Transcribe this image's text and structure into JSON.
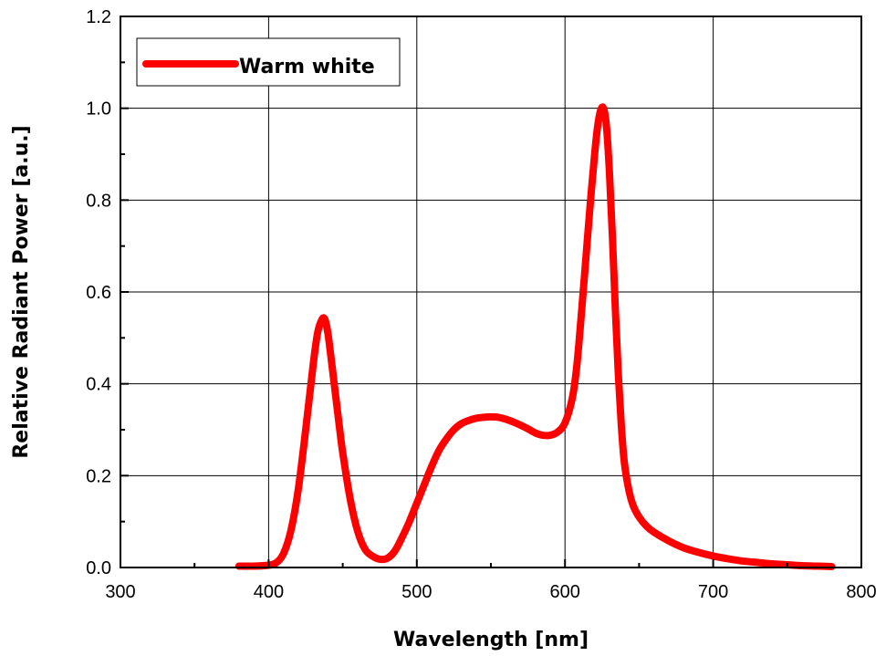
{
  "chart_data": {
    "type": "line",
    "title": "",
    "xlabel": "Wavelength [nm]",
    "ylabel": "Relative Radiant Power [a.u.]",
    "xlim": [
      300,
      800
    ],
    "ylim": [
      0,
      1.2
    ],
    "xticks": [
      300,
      400,
      500,
      600,
      700,
      800
    ],
    "yticks": [
      0.0,
      0.2,
      0.4,
      0.6,
      0.8,
      1.0,
      1.2
    ],
    "xtick_labels": [
      "300",
      "400",
      "500",
      "600",
      "700",
      "800"
    ],
    "ytick_labels": [
      "0.0",
      "0.2",
      "0.4",
      "0.6",
      "0.8",
      "1.0",
      "1.2"
    ],
    "grid": true,
    "legend_position": "top-left",
    "series": [
      {
        "name": "Warm white",
        "color": "#ff0000",
        "x": [
          380,
          390,
          400,
          405,
          410,
          415,
          420,
          425,
          430,
          433,
          436,
          438,
          440,
          442,
          445,
          448,
          450,
          455,
          460,
          465,
          470,
          475,
          480,
          485,
          490,
          495,
          500,
          505,
          510,
          515,
          520,
          525,
          530,
          535,
          540,
          545,
          550,
          555,
          560,
          565,
          570,
          575,
          580,
          585,
          590,
          595,
          600,
          605,
          608,
          611,
          614,
          617,
          620,
          622,
          624,
          626,
          628,
          630,
          632,
          634,
          636,
          638,
          640,
          643,
          646,
          650,
          655,
          660,
          670,
          680,
          690,
          700,
          710,
          720,
          730,
          740,
          750,
          760,
          770,
          780
        ],
        "y": [
          0.003,
          0.003,
          0.005,
          0.01,
          0.03,
          0.08,
          0.17,
          0.3,
          0.44,
          0.51,
          0.54,
          0.54,
          0.51,
          0.46,
          0.38,
          0.3,
          0.25,
          0.15,
          0.08,
          0.04,
          0.025,
          0.018,
          0.02,
          0.035,
          0.065,
          0.1,
          0.14,
          0.18,
          0.22,
          0.255,
          0.28,
          0.3,
          0.313,
          0.32,
          0.325,
          0.327,
          0.328,
          0.327,
          0.323,
          0.317,
          0.31,
          0.302,
          0.293,
          0.288,
          0.288,
          0.295,
          0.315,
          0.37,
          0.44,
          0.55,
          0.67,
          0.79,
          0.9,
          0.96,
          0.995,
          1.0,
          0.96,
          0.86,
          0.72,
          0.56,
          0.42,
          0.31,
          0.23,
          0.17,
          0.135,
          0.11,
          0.09,
          0.077,
          0.058,
          0.043,
          0.033,
          0.025,
          0.019,
          0.014,
          0.011,
          0.008,
          0.006,
          0.004,
          0.003,
          0.002
        ]
      }
    ]
  }
}
